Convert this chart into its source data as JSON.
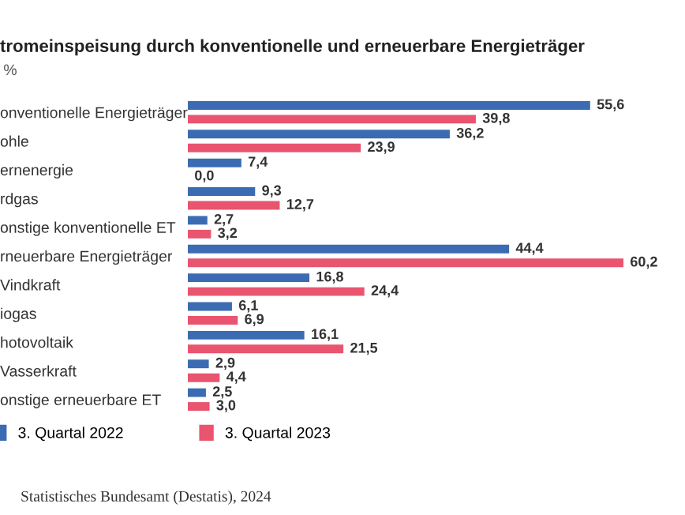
{
  "chart_data": {
    "type": "bar",
    "orientation": "horizontal",
    "title": "tromeinspeisung durch konventionelle und erneuerbare Energieträger",
    "subtitle": "%",
    "categories": [
      "onventionelle Energieträger",
      "ohle",
      "ernenergie",
      "rdgas",
      "onstige konventionelle ET",
      "rneuerbare Energieträger",
      "Vindkraft",
      "iogas",
      "hotovoltaik",
      "Vasserkraft",
      "onstige erneuerbare ET"
    ],
    "series": [
      {
        "name": "3. Quartal 2022",
        "color": "#3b6cb3",
        "values": [
          55.6,
          36.2,
          7.4,
          9.3,
          2.7,
          44.4,
          16.8,
          6.1,
          16.1,
          2.9,
          2.5
        ],
        "value_labels": [
          "55,6",
          "36,2",
          "7,4",
          "9,3",
          "2,7",
          "44,4",
          "16,8",
          "6,1",
          "16,1",
          "2,9",
          "2,5"
        ]
      },
      {
        "name": "3. Quartal 2023",
        "color": "#e9546f",
        "values": [
          39.8,
          23.9,
          0.0,
          12.7,
          3.2,
          60.2,
          24.4,
          6.9,
          21.5,
          4.4,
          3.0
        ],
        "value_labels": [
          "39,8",
          "23,9",
          "0,0",
          "12,7",
          "3,2",
          "60,2",
          "24,4",
          "6,9",
          "21,5",
          "4,4",
          "3,0"
        ]
      }
    ],
    "legend": "bottom",
    "grid": false,
    "annotations": [
      "Statistisches Bundesamt (Destatis), 2024"
    ]
  }
}
